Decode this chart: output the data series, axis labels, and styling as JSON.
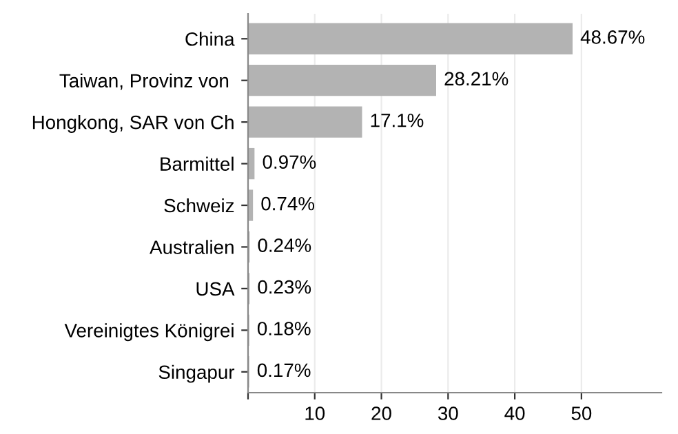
{
  "chart_data": {
    "type": "bar",
    "orientation": "horizontal",
    "categories": [
      "China",
      "Taiwan, Provinz von ",
      "Hongkong, SAR von Ch",
      "Barmittel",
      "Schweiz",
      "Australien",
      "USA",
      "Vereinigtes Königrei",
      "Singapur"
    ],
    "values": [
      48.67,
      28.21,
      17.1,
      0.97,
      0.74,
      0.24,
      0.23,
      0.18,
      0.17
    ],
    "value_labels": [
      "48.67%",
      "28.21%",
      "17.1%",
      "0.97%",
      "0.74%",
      "0.24%",
      "0.23%",
      "0.18%",
      "0.17%"
    ],
    "color": "#b3b3b3",
    "xlim": [
      0,
      62
    ],
    "xticks": [
      {
        "value": 0,
        "label": null
      },
      10,
      20,
      30,
      40,
      50
    ],
    "grid": "x"
  }
}
